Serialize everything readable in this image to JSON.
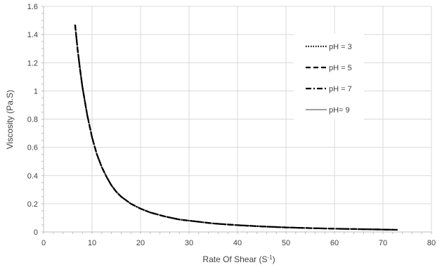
{
  "chart_data": {
    "type": "line",
    "title": "",
    "xlabel": "Rate Of Shear (S",
    "xlabel_superscript": "-1",
    "xlabel_suffix": ")",
    "ylabel": "Viscosity (Pa.S)",
    "xlim": [
      0,
      80
    ],
    "ylim": [
      0,
      1.6
    ],
    "xticks": [
      0,
      10,
      20,
      30,
      40,
      50,
      60,
      70,
      80
    ],
    "yticks": [
      0,
      0.2,
      0.4,
      0.6,
      0.8,
      1,
      1.2,
      1.4,
      1.6
    ],
    "xtick_labels": [
      "0",
      "10",
      "20",
      "30",
      "40",
      "50",
      "60",
      "70",
      "80"
    ],
    "ytick_labels": [
      "0",
      "0.2",
      "0.4",
      "0.6",
      "0.8",
      "1",
      "1.2",
      "1.4",
      "1.6"
    ],
    "grid": true,
    "legend_position": "top-right",
    "series": [
      {
        "name": "pH = 3",
        "line_style": "dotted",
        "color": "#000000",
        "x": [
          6.5,
          7,
          7.5,
          8,
          9,
          10,
          11,
          12,
          13,
          14,
          15,
          16,
          18,
          20,
          22,
          25,
          28,
          30,
          35,
          40,
          45,
          50,
          55,
          60,
          65,
          70,
          73
        ],
        "y": [
          1.47,
          1.3,
          1.16,
          1.03,
          0.83,
          0.67,
          0.55,
          0.46,
          0.39,
          0.33,
          0.285,
          0.25,
          0.2,
          0.165,
          0.138,
          0.11,
          0.088,
          0.08,
          0.06,
          0.048,
          0.039,
          0.032,
          0.027,
          0.023,
          0.02,
          0.017,
          0.015
        ]
      },
      {
        "name": "pH = 5",
        "line_style": "dashed",
        "color": "#000000",
        "x": [
          6.5,
          7,
          7.5,
          8,
          9,
          10,
          11,
          12,
          13,
          14,
          15,
          16,
          18,
          20,
          22,
          25,
          28,
          30,
          35,
          40,
          45,
          50,
          55,
          60,
          65,
          70,
          73
        ],
        "y": [
          1.47,
          1.3,
          1.16,
          1.03,
          0.83,
          0.67,
          0.55,
          0.46,
          0.39,
          0.33,
          0.285,
          0.25,
          0.2,
          0.165,
          0.138,
          0.11,
          0.088,
          0.08,
          0.06,
          0.048,
          0.039,
          0.032,
          0.027,
          0.023,
          0.02,
          0.017,
          0.015
        ]
      },
      {
        "name": "pH = 7",
        "line_style": "dash-dot",
        "color": "#000000",
        "x": [
          6.5,
          7,
          7.5,
          8,
          9,
          10,
          11,
          12,
          13,
          14,
          15,
          16,
          18,
          20,
          22,
          25,
          28,
          30,
          35,
          40,
          45,
          50,
          55,
          60,
          65,
          70,
          73
        ],
        "y": [
          1.47,
          1.3,
          1.16,
          1.03,
          0.83,
          0.67,
          0.55,
          0.46,
          0.39,
          0.33,
          0.285,
          0.25,
          0.2,
          0.165,
          0.138,
          0.11,
          0.088,
          0.08,
          0.06,
          0.048,
          0.039,
          0.032,
          0.027,
          0.023,
          0.02,
          0.017,
          0.015
        ]
      },
      {
        "name": "pH= 9",
        "line_style": "solid",
        "color": "#808080",
        "x": [
          6.5,
          7,
          7.5,
          8,
          9,
          10,
          11,
          12,
          13,
          14,
          15,
          16,
          18,
          20,
          22,
          25,
          28,
          30,
          35,
          40,
          45,
          50,
          55,
          60,
          65,
          70,
          73
        ],
        "y": [
          1.47,
          1.3,
          1.16,
          1.03,
          0.83,
          0.67,
          0.55,
          0.46,
          0.39,
          0.33,
          0.285,
          0.25,
          0.2,
          0.165,
          0.138,
          0.11,
          0.088,
          0.08,
          0.06,
          0.048,
          0.039,
          0.032,
          0.027,
          0.023,
          0.02,
          0.017,
          0.015
        ]
      }
    ]
  },
  "colors": {
    "grid": "#d9d9d9",
    "axis": "#bfbfbf",
    "text": "#404040",
    "series_dark": "#000000",
    "series_gray": "#808080"
  }
}
